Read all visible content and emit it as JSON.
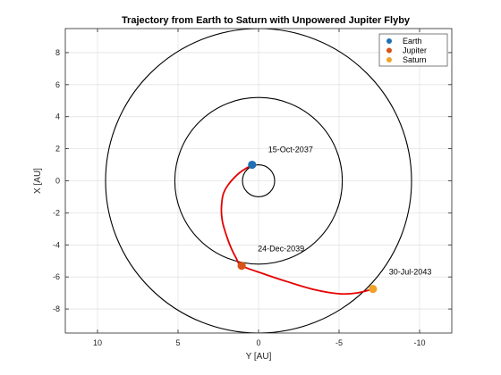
{
  "chart_data": {
    "type": "line",
    "title": "Trajectory from Earth to Saturn with Unpowered Jupiter Flyby",
    "xlabel": "Y [AU]",
    "ylabel": "X [AU]",
    "xlim": [
      12,
      -12
    ],
    "ylim": [
      -9.5,
      9.5
    ],
    "x_reversed": true,
    "xticks": [
      10,
      5,
      0,
      -5,
      -10
    ],
    "yticks": [
      -8,
      -6,
      -4,
      -2,
      0,
      2,
      4,
      6,
      8
    ],
    "grid": true,
    "legend_placement": "top-right",
    "orbits": [
      {
        "radius": 1.0
      },
      {
        "radius": 5.2
      },
      {
        "radius": 9.5
      }
    ],
    "trajectory": {
      "color": "#e60000",
      "points": [
        [
          0.4,
          1.0
        ],
        [
          1.3,
          0.4
        ],
        [
          2.1,
          -0.6
        ],
        [
          2.3,
          -1.6
        ],
        [
          2.25,
          -2.5
        ],
        [
          2.0,
          -3.4
        ],
        [
          1.7,
          -4.2
        ],
        [
          1.4,
          -4.8
        ],
        [
          1.05,
          -5.3
        ],
        [
          -0.3,
          -5.8
        ],
        [
          -1.8,
          -6.3
        ],
        [
          -3.5,
          -6.8
        ],
        [
          -5.0,
          -7.05
        ],
        [
          -6.1,
          -7.0
        ],
        [
          -7.1,
          -6.75
        ]
      ]
    },
    "bodies": [
      {
        "name": "Earth",
        "color": "#1f6fb5",
        "y": 0.4,
        "x": 1.0,
        "date": "15-Oct-2037"
      },
      {
        "name": "Jupiter",
        "color": "#d95319",
        "y": 1.05,
        "x": -5.3,
        "date": "24-Dec-2039"
      },
      {
        "name": "Saturn",
        "color": "#f0a229",
        "y": -7.1,
        "x": -6.75,
        "date": "30-Jul-2043"
      }
    ]
  }
}
